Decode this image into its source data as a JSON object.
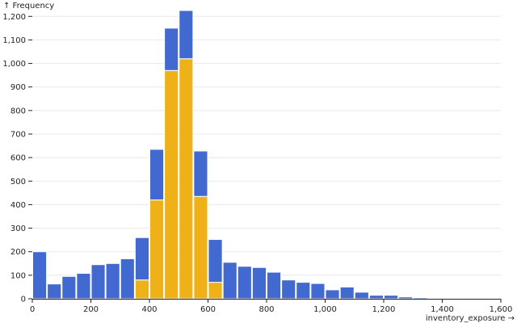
{
  "chart_data": {
    "type": "bar",
    "stacked": true,
    "title": "",
    "xlabel": "inventory_exposure →",
    "ylabel": "↑ Frequency",
    "xlim": [
      0,
      1600
    ],
    "ylim": [
      0,
      1225
    ],
    "bin_width": 50,
    "x_ticks": [
      0,
      200,
      400,
      600,
      800,
      1000,
      1200,
      1400,
      1600
    ],
    "x_tick_labels": [
      "0",
      "200",
      "400",
      "600",
      "800",
      "1,000",
      "1,200",
      "1,400",
      "1,600"
    ],
    "y_ticks": [
      0,
      100,
      200,
      300,
      400,
      500,
      600,
      700,
      800,
      900,
      1000,
      1100,
      1200
    ],
    "y_tick_labels": [
      "0",
      "100",
      "200",
      "300",
      "400",
      "500",
      "600",
      "700",
      "800",
      "900",
      "1,000",
      "1,100",
      "1,200"
    ],
    "grid": true,
    "bin_starts": [
      0,
      50,
      100,
      150,
      200,
      250,
      300,
      350,
      400,
      450,
      500,
      550,
      600,
      650,
      700,
      750,
      800,
      850,
      900,
      950,
      1000,
      1050,
      1100,
      1150,
      1200,
      1250,
      1300,
      1350,
      1400,
      1450,
      1500,
      1550
    ],
    "series": [
      {
        "color": "#efb118",
        "values": [
          0,
          0,
          0,
          0,
          0,
          0,
          0,
          80,
          420,
          970,
          1020,
          435,
          70,
          0,
          0,
          0,
          0,
          0,
          0,
          0,
          0,
          0,
          0,
          0,
          0,
          0,
          0,
          0,
          0,
          0,
          0,
          0
        ]
      },
      {
        "color": "#4269d0",
        "values": [
          200,
          63,
          95,
          108,
          145,
          150,
          170,
          180,
          215,
          180,
          205,
          193,
          182,
          155,
          138,
          133,
          113,
          80,
          70,
          65,
          38,
          50,
          28,
          15,
          15,
          8,
          5,
          3,
          2,
          1,
          1,
          1
        ]
      }
    ]
  }
}
